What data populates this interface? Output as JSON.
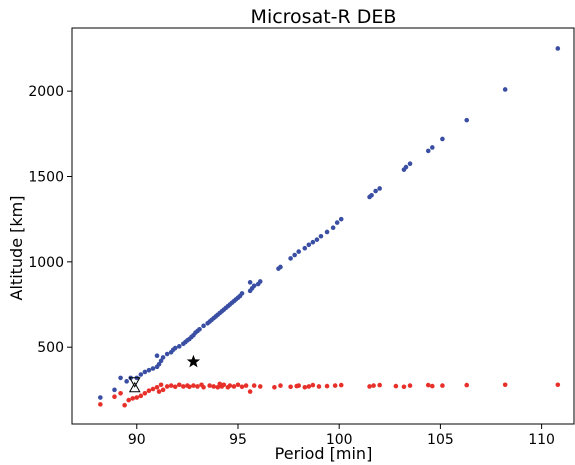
{
  "chart_data": {
    "type": "scatter",
    "title": "Microsat-R DEB",
    "xlabel": "Period [min]",
    "ylabel": "Altitude [km]",
    "xlim": [
      86.8,
      111.6
    ],
    "ylim": [
      50,
      2370
    ],
    "xticks": [
      90,
      95,
      100,
      105,
      110
    ],
    "yticks": [
      500,
      1000,
      1500,
      2000
    ],
    "grid": false,
    "colors": {
      "apogee": "#3a4fa3",
      "perigee": "#e8302a",
      "marker": "#000000"
    },
    "series": [
      {
        "color": "#3a4fa3",
        "points": [
          [
            88.2,
            205
          ],
          [
            88.9,
            250
          ],
          [
            89.2,
            320
          ],
          [
            89.5,
            300
          ],
          [
            89.7,
            320
          ],
          [
            90.0,
            320
          ],
          [
            90.2,
            340
          ],
          [
            90.4,
            355
          ],
          [
            90.6,
            365
          ],
          [
            90.8,
            375
          ],
          [
            91.0,
            385
          ],
          [
            91.1,
            400
          ],
          [
            91.2,
            420
          ],
          [
            91.3,
            440
          ],
          [
            91.0,
            450
          ],
          [
            91.5,
            460
          ],
          [
            91.7,
            470
          ],
          [
            91.8,
            485
          ],
          [
            91.9,
            495
          ],
          [
            92.1,
            505
          ],
          [
            92.3,
            520
          ],
          [
            92.4,
            530
          ],
          [
            92.5,
            540
          ],
          [
            92.6,
            548
          ],
          [
            92.7,
            560
          ],
          [
            92.8,
            570
          ],
          [
            92.9,
            585
          ],
          [
            93.0,
            595
          ],
          [
            93.1,
            605
          ],
          [
            93.3,
            625
          ],
          [
            93.5,
            640
          ],
          [
            93.6,
            650
          ],
          [
            93.7,
            660
          ],
          [
            93.8,
            670
          ],
          [
            93.9,
            680
          ],
          [
            94.0,
            690
          ],
          [
            94.1,
            700
          ],
          [
            94.2,
            710
          ],
          [
            94.3,
            720
          ],
          [
            94.4,
            730
          ],
          [
            94.5,
            740
          ],
          [
            94.6,
            750
          ],
          [
            94.7,
            760
          ],
          [
            94.8,
            770
          ],
          [
            94.9,
            780
          ],
          [
            95.0,
            790
          ],
          [
            95.1,
            800
          ],
          [
            95.2,
            815
          ],
          [
            95.6,
            830
          ],
          [
            95.7,
            845
          ],
          [
            95.8,
            860
          ],
          [
            96.0,
            870
          ],
          [
            95.6,
            880
          ],
          [
            96.1,
            885
          ],
          [
            97.0,
            960
          ],
          [
            97.1,
            970
          ],
          [
            97.6,
            1020
          ],
          [
            97.8,
            1040
          ],
          [
            98.0,
            1060
          ],
          [
            98.3,
            1080
          ],
          [
            98.5,
            1100
          ],
          [
            98.7,
            1115
          ],
          [
            98.9,
            1130
          ],
          [
            99.1,
            1150
          ],
          [
            99.4,
            1175
          ],
          [
            99.7,
            1200
          ],
          [
            99.9,
            1230
          ],
          [
            100.1,
            1250
          ],
          [
            101.5,
            1380
          ],
          [
            101.6,
            1390
          ],
          [
            101.8,
            1415
          ],
          [
            102.0,
            1430
          ],
          [
            103.2,
            1540
          ],
          [
            103.3,
            1555
          ],
          [
            103.5,
            1575
          ],
          [
            104.4,
            1650
          ],
          [
            104.6,
            1670
          ],
          [
            105.1,
            1720
          ],
          [
            106.3,
            1830
          ],
          [
            108.2,
            2010
          ],
          [
            110.8,
            2250
          ]
        ]
      },
      {
        "color": "#e8302a",
        "points": [
          [
            88.2,
            165
          ],
          [
            88.9,
            210
          ],
          [
            89.2,
            230
          ],
          [
            89.4,
            160
          ],
          [
            89.6,
            190
          ],
          [
            89.8,
            200
          ],
          [
            90.0,
            205
          ],
          [
            90.2,
            215
          ],
          [
            90.4,
            230
          ],
          [
            90.6,
            245
          ],
          [
            90.8,
            255
          ],
          [
            91.0,
            265
          ],
          [
            91.1,
            240
          ],
          [
            91.2,
            280
          ],
          [
            91.3,
            250
          ],
          [
            91.5,
            270
          ],
          [
            91.7,
            275
          ],
          [
            91.9,
            268
          ],
          [
            92.1,
            280
          ],
          [
            92.3,
            270
          ],
          [
            92.5,
            275
          ],
          [
            92.6,
            268
          ],
          [
            92.8,
            275
          ],
          [
            93.0,
            270
          ],
          [
            93.2,
            280
          ],
          [
            93.3,
            265
          ],
          [
            93.6,
            275
          ],
          [
            93.8,
            270
          ],
          [
            94.0,
            265
          ],
          [
            94.1,
            285
          ],
          [
            94.2,
            270
          ],
          [
            94.3,
            280
          ],
          [
            94.5,
            265
          ],
          [
            94.6,
            275
          ],
          [
            94.8,
            270
          ],
          [
            95.0,
            280
          ],
          [
            95.2,
            268
          ],
          [
            95.4,
            275
          ],
          [
            95.6,
            240
          ],
          [
            95.8,
            275
          ],
          [
            96.1,
            270
          ],
          [
            96.8,
            265
          ],
          [
            97.1,
            275
          ],
          [
            97.6,
            268
          ],
          [
            97.9,
            272
          ],
          [
            98.0,
            275
          ],
          [
            98.3,
            265
          ],
          [
            98.5,
            270
          ],
          [
            98.7,
            278
          ],
          [
            99.0,
            270
          ],
          [
            99.4,
            272
          ],
          [
            99.8,
            275
          ],
          [
            100.1,
            278
          ],
          [
            101.5,
            270
          ],
          [
            101.7,
            275
          ],
          [
            102.0,
            278
          ],
          [
            102.8,
            272
          ],
          [
            103.2,
            268
          ],
          [
            103.5,
            275
          ],
          [
            104.4,
            278
          ],
          [
            104.6,
            272
          ],
          [
            105.1,
            275
          ],
          [
            106.3,
            278
          ],
          [
            108.2,
            280
          ],
          [
            110.8,
            280
          ]
        ]
      }
    ],
    "markers": [
      {
        "shape": "star",
        "x": 92.8,
        "y": 415
      },
      {
        "shape": "hourglass",
        "x": 89.9,
        "y": 280
      }
    ]
  }
}
